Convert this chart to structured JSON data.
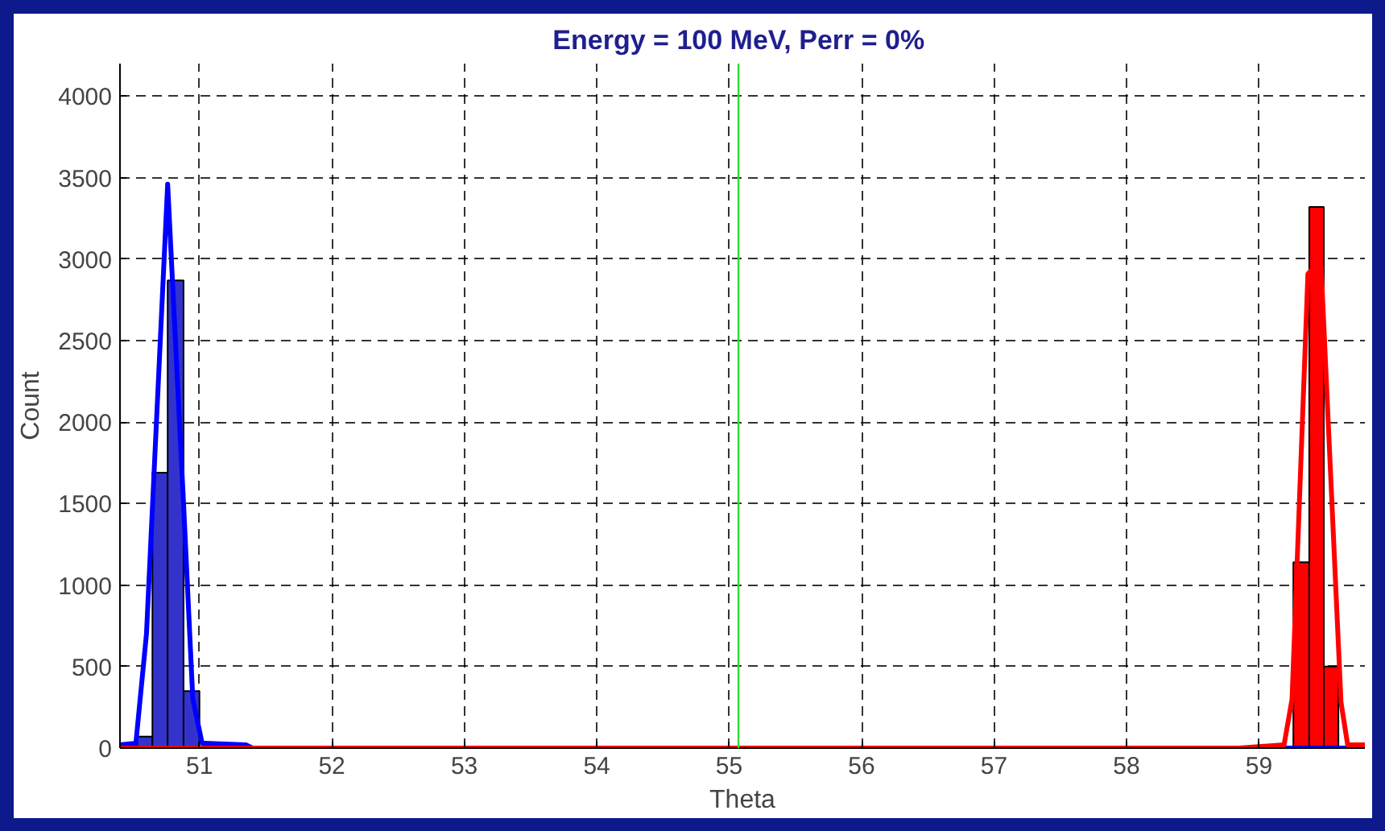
{
  "chart_data": {
    "type": "histogram",
    "title": "Energy = 100 MeV,  Perr = 0%",
    "xlabel": "Theta",
    "ylabel": "Count",
    "xlim": [
      50.4,
      59.8
    ],
    "xticks": [
      51,
      52,
      53,
      54,
      55,
      56,
      57,
      58,
      59
    ],
    "ylim": [
      0,
      4200
    ],
    "yticks": [
      0,
      500,
      1000,
      1500,
      2000,
      2500,
      3000,
      3500,
      4000
    ],
    "grid": true,
    "series": [
      {
        "color": "#3333cc",
        "bins": [
          50.53,
          50.645,
          50.76,
          50.88,
          51.0
        ],
        "values": [
          70,
          1690,
          2870,
          350
        ]
      },
      {
        "color": "#ff0000",
        "bins": [
          59.26,
          59.38,
          59.49,
          59.6
        ],
        "values": [
          1140,
          3320,
          500
        ]
      },
      {
        "type": "line",
        "color": "#0000ff",
        "x": [
          50.4,
          50.52,
          50.6,
          50.76,
          50.88,
          50.95,
          51.02,
          51.35,
          51.4,
          59.8
        ],
        "values": [
          20,
          30,
          700,
          3460,
          1500,
          300,
          30,
          20,
          0,
          0
        ]
      },
      {
        "type": "line",
        "color": "#ff0000",
        "x": [
          50.4,
          58.85,
          59.19,
          59.25,
          59.37,
          59.43,
          59.47,
          59.62,
          59.67,
          59.8
        ],
        "values": [
          0,
          0,
          20,
          300,
          2910,
          2960,
          2950,
          280,
          20,
          20
        ]
      }
    ],
    "ref_lines": [
      {
        "axis": "x",
        "value": 55.07,
        "color": "#33dd33"
      }
    ]
  }
}
